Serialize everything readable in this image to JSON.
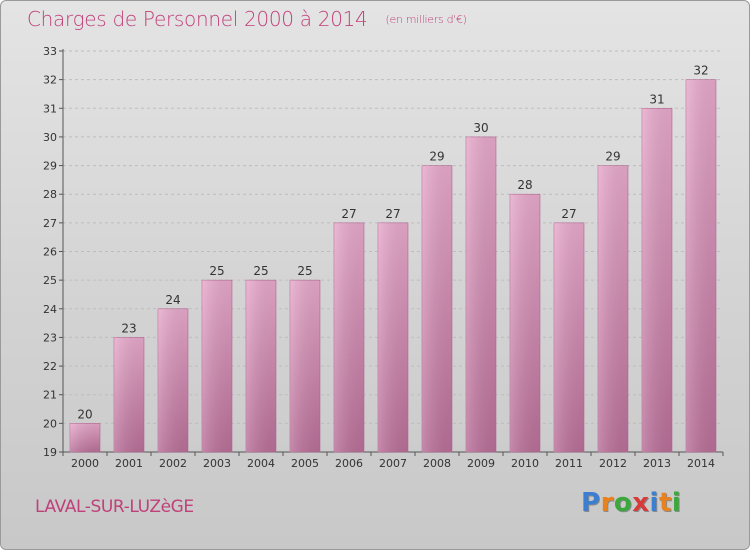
{
  "title": "Charges de Personnel 2000 à 2014",
  "subtitle": "(en milliers d'€)",
  "location": "LAVAL-SUR-LUZèGE",
  "logo": {
    "letters": [
      "P",
      "r",
      "o",
      "x",
      "i",
      "t",
      "i"
    ],
    "colors": [
      "#3a7fd0",
      "#e8821e",
      "#3aa83a",
      "#d83a3a",
      "#3a7fd0",
      "#e8821e",
      "#3aa83a"
    ]
  },
  "chart_data": {
    "type": "bar",
    "categories": [
      "2000",
      "2001",
      "2002",
      "2003",
      "2004",
      "2005",
      "2006",
      "2007",
      "2008",
      "2009",
      "2010",
      "2011",
      "2012",
      "2013",
      "2014"
    ],
    "values": [
      20,
      23,
      24,
      25,
      25,
      25,
      27,
      27,
      29,
      30,
      28,
      27,
      29,
      31,
      32
    ],
    "ylim": [
      19,
      33
    ],
    "yticks": [
      19,
      20,
      21,
      22,
      23,
      24,
      25,
      26,
      27,
      28,
      29,
      30,
      31,
      32,
      33
    ],
    "grid": true,
    "bar_color": "#d98fb8",
    "xlabel": "",
    "ylabel": ""
  }
}
